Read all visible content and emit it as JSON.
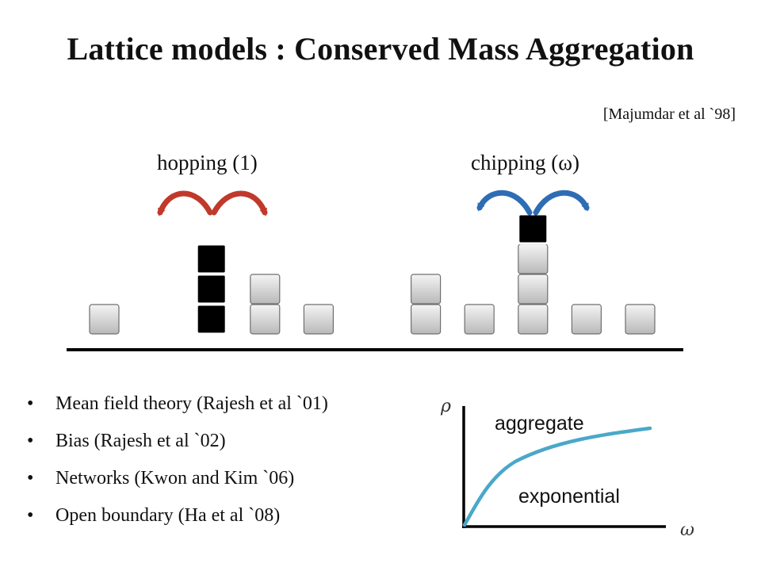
{
  "slide": {
    "title": "Lattice models : Conserved Mass Aggregation",
    "reference": "[Majumdar et al `98]"
  },
  "processes": {
    "hopping": {
      "label": "hopping (1)",
      "arrow_color": "#c0392b"
    },
    "chipping": {
      "label": "chipping (ω)",
      "arrow_color": "#2e6db4"
    }
  },
  "lattice": {
    "stacks": [
      {
        "site": 1,
        "masses": [
          "gray"
        ]
      },
      {
        "site": 3,
        "masses": [
          "black",
          "black",
          "black"
        ]
      },
      {
        "site": 4,
        "masses": [
          "gray",
          "gray"
        ]
      },
      {
        "site": 5,
        "masses": [
          "gray"
        ]
      },
      {
        "site": 7,
        "masses": [
          "gray",
          "gray"
        ]
      },
      {
        "site": 8,
        "masses": [
          "gray"
        ]
      },
      {
        "site": 9,
        "masses": [
          "gray",
          "gray",
          "gray",
          "black"
        ]
      },
      {
        "site": 10,
        "masses": [
          "gray"
        ]
      },
      {
        "site": 11,
        "masses": [
          "gray"
        ]
      }
    ]
  },
  "bullets": [
    "Mean field theory (Rajesh et al `01)",
    "Bias (Rajesh et al `02)",
    "Networks (Kwon and Kim `06)",
    "Open boundary (Ha et al `08)"
  ],
  "bullet_symbol": "•",
  "phase_diagram": {
    "y_axis_label": "ρ",
    "x_axis_label": "ω",
    "upper_region": "aggregate",
    "lower_region": "exponential",
    "curve_color": "#4aa8c9"
  }
}
